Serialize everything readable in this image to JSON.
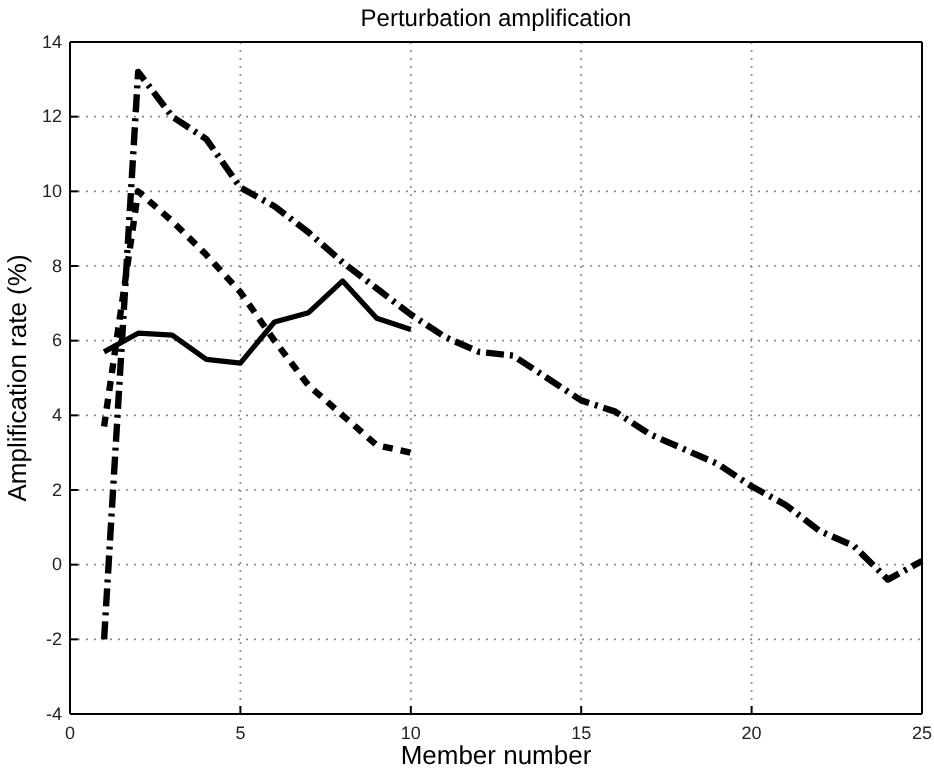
{
  "chart_data": {
    "type": "line",
    "title": "Perturbation amplification",
    "xlabel": "Member number",
    "ylabel": "Amplification rate (%)",
    "xlim": [
      0,
      25
    ],
    "xticks": [
      0,
      5,
      10,
      15,
      20,
      25
    ],
    "ylim": [
      -4,
      14
    ],
    "yticks": [
      -4,
      -2,
      0,
      2,
      4,
      6,
      8,
      10,
      12,
      14
    ],
    "grid": true,
    "marker": "none",
    "series": [
      {
        "color": "#000000",
        "line_style": "solid",
        "x": [
          1,
          2,
          3,
          4,
          5,
          6,
          7,
          8,
          9,
          10
        ],
        "values": [
          5.7,
          6.2,
          6.15,
          5.5,
          5.4,
          6.5,
          6.75,
          7.6,
          6.6,
          6.3
        ]
      },
      {
        "color": "#000000",
        "line_style": "dotted",
        "x": [
          1,
          2,
          3,
          4,
          5,
          6,
          7,
          8,
          9,
          10
        ],
        "values": [
          3.7,
          10,
          9.2,
          8.3,
          7.3,
          6.0,
          4.8,
          4.0,
          3.2,
          3.0
        ]
      },
      {
        "color": "#000000",
        "line_style": "dashed",
        "x": [
          1,
          2,
          3,
          4,
          5,
          6,
          7,
          8,
          9,
          10,
          11,
          12,
          13,
          14,
          15,
          16,
          17,
          18,
          19,
          20,
          21,
          22,
          23,
          24,
          25
        ],
        "values": [
          -2,
          13.2,
          12,
          11.4,
          10.1,
          9.6,
          8.9,
          8.1,
          7.4,
          6.7,
          6.1,
          5.7,
          5.6,
          5.0,
          4.4,
          4.1,
          3.5,
          3.1,
          2.7,
          2.1,
          1.6,
          0.9,
          0.5,
          -0.4,
          0.1
        ]
      }
    ]
  }
}
